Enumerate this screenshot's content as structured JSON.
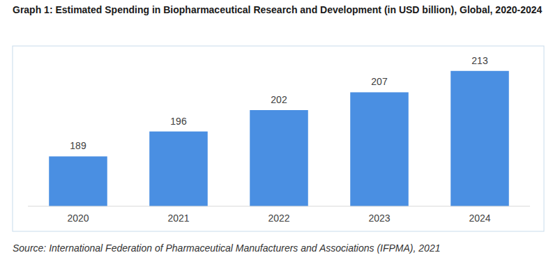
{
  "chart_data": {
    "type": "bar",
    "title": "Graph 1: Estimated Spending in Biopharmaceutical Research and Development (in USD billion), Global, 2020-2024",
    "categories": [
      "2020",
      "2021",
      "2022",
      "2023",
      "2024"
    ],
    "values": [
      189,
      196,
      202,
      207,
      213
    ],
    "color": "#4a8fe2",
    "ylim": [
      175,
      220
    ],
    "data_labels": true,
    "tick_labels": "x",
    "grid": false,
    "source": "Source: International Federation of Pharmaceutical Manufacturers and Associations (IFPMA), 2021"
  }
}
